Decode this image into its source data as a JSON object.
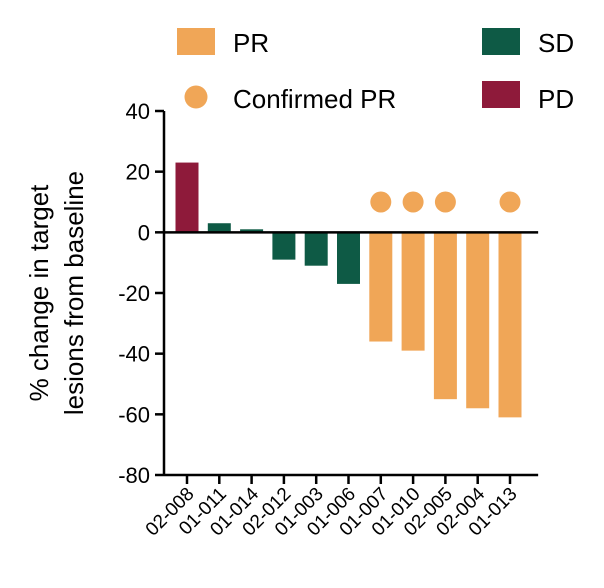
{
  "chart_data": {
    "type": "bar",
    "title": "",
    "xlabel": "",
    "ylabel": [
      "% change in target",
      "lesions from baseline"
    ],
    "ylim": [
      -80,
      40
    ],
    "yticks": [
      40,
      20,
      0,
      -20,
      -40,
      -60,
      -80
    ],
    "grid": false,
    "legend_position": "top",
    "categories": [
      "02-008",
      "01-011",
      "01-014",
      "02-012",
      "01-003",
      "01-006",
      "01-007",
      "01-010",
      "02-005",
      "02-004",
      "01-013"
    ],
    "values": [
      23,
      3,
      1,
      -9,
      -11,
      -17,
      -36,
      -39,
      -55,
      -58,
      -61
    ],
    "response": [
      "PD",
      "SD",
      "SD",
      "SD",
      "SD",
      "SD",
      "PR",
      "PR",
      "PR",
      "PR",
      "PR"
    ],
    "confirmed_pr": [
      false,
      false,
      false,
      false,
      false,
      false,
      true,
      true,
      true,
      false,
      true
    ],
    "confirmed_marker_y": 10,
    "legend": [
      {
        "key": "PR",
        "label": "PR",
        "marker": "square",
        "color": "#F0A657"
      },
      {
        "key": "confirmed",
        "label": "Confirmed PR",
        "marker": "circle",
        "color": "#F0A657"
      },
      {
        "key": "SD",
        "label": "SD",
        "marker": "square",
        "color": "#0E5A45"
      },
      {
        "key": "PD",
        "label": "PD",
        "marker": "square",
        "color": "#8E1A3A"
      }
    ],
    "colors": {
      "PR": "#F0A657",
      "SD": "#0E5A45",
      "PD": "#8E1A3A",
      "confirmed": "#F0A657"
    }
  }
}
